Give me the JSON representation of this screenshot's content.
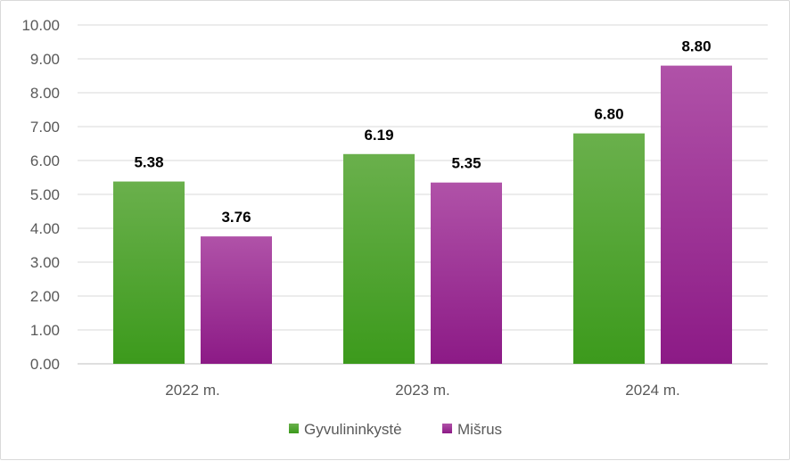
{
  "chart_data": {
    "type": "bar",
    "categories": [
      "2022 m.",
      "2023 m.",
      "2024 m."
    ],
    "series": [
      {
        "name": "Gyvulininkystė",
        "values": [
          5.38,
          6.19,
          6.8
        ],
        "value_labels": [
          "5.38",
          "6.19",
          "6.80"
        ],
        "color_top": "#6ab04c",
        "color_bottom": "#3c9a1c"
      },
      {
        "name": "Mišrus",
        "values": [
          3.76,
          5.35,
          8.8
        ],
        "value_labels": [
          "3.76",
          "5.35",
          "8.80"
        ],
        "color_top": "#b052a8",
        "color_bottom": "#8c1a86"
      }
    ],
    "y_ticks": [
      "0.00",
      "1.00",
      "2.00",
      "3.00",
      "4.00",
      "5.00",
      "6.00",
      "7.00",
      "8.00",
      "9.00",
      "10.00"
    ],
    "ylim": [
      0,
      10
    ],
    "grid": true,
    "legend_position": "bottom",
    "title": "",
    "xlabel": "",
    "ylabel": ""
  }
}
